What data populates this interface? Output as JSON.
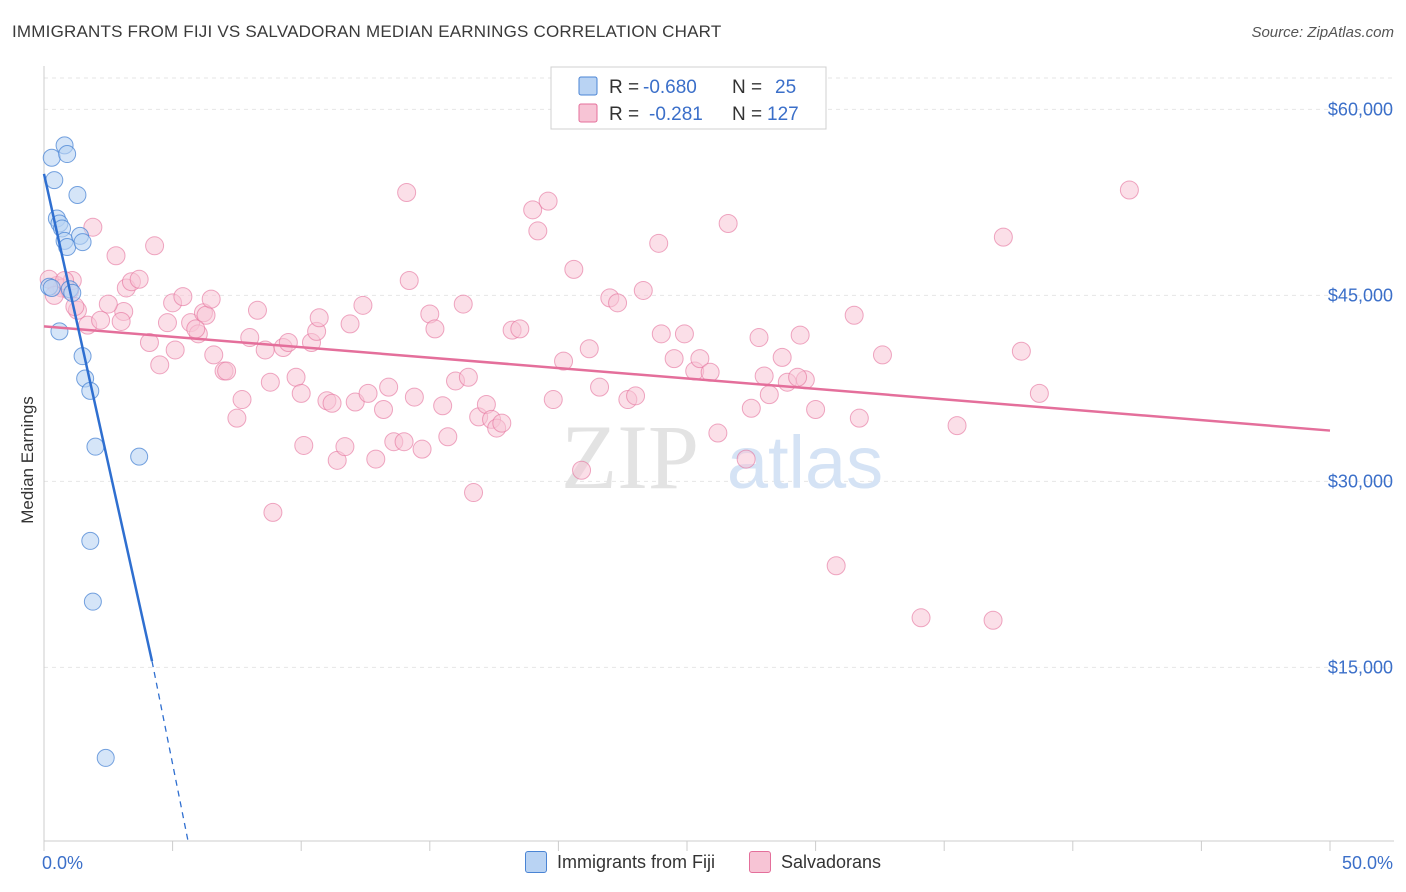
{
  "header": {
    "title": "IMMIGRANTS FROM FIJI VS SALVADORAN MEDIAN EARNINGS CORRELATION CHART",
    "source": "Source: ZipAtlas.com"
  },
  "watermark": {
    "zip": "ZIP",
    "atlas": "atlas"
  },
  "colors": {
    "fiji": "#4a84d4",
    "fiji_fill": "#b9d3f3",
    "salv": "#e46f9b",
    "salv_fill": "#f7c4d5",
    "tick": "#3b6fc9"
  },
  "legend": {
    "rows": [
      {
        "r_label": "R =",
        "r_value": "-0.680",
        "n_label": "N =",
        "n_value": "25"
      },
      {
        "r_label": "R =",
        "r_value": "-0.281",
        "n_label": "N =",
        "n_value": "127"
      }
    ]
  },
  "bottom_legend": {
    "fiji": "Immigrants from Fiji",
    "salv": "Salvadorans"
  },
  "chart_data": {
    "type": "scatter",
    "title": "IMMIGRANTS FROM FIJI VS SALVADORAN MEDIAN EARNINGS CORRELATION CHART",
    "xlabel": "",
    "ylabel": "Median Earnings",
    "xlim": [
      0,
      50
    ],
    "ylim": [
      1000,
      63500
    ],
    "x_tick_labels": [
      "0.0%",
      "50.0%"
    ],
    "y_ticks": [
      15000,
      30000,
      45000,
      60000
    ],
    "y_tick_labels": [
      "$15,000",
      "$30,000",
      "$45,000",
      "$60,000"
    ],
    "grid": true,
    "legend_position": "top-center",
    "series": [
      {
        "name": "Immigrants from Fiji",
        "r": -0.68,
        "n": 25,
        "trend": {
          "x0": 0,
          "y0": 54800,
          "x1": 4.2,
          "y1": 15500,
          "dash_to_x": 5.6,
          "dash_to_y": 1000
        },
        "points": [
          [
            0.3,
            56100
          ],
          [
            0.4,
            54300
          ],
          [
            0.5,
            51200
          ],
          [
            0.6,
            50800
          ],
          [
            0.7,
            50400
          ],
          [
            0.8,
            49400
          ],
          [
            0.9,
            48900
          ],
          [
            1.0,
            45500
          ],
          [
            1.1,
            45200
          ],
          [
            0.2,
            45700
          ],
          [
            0.3,
            45600
          ],
          [
            0.8,
            57100
          ],
          [
            0.9,
            56400
          ],
          [
            1.3,
            53100
          ],
          [
            1.4,
            49800
          ],
          [
            1.5,
            49300
          ],
          [
            0.6,
            42100
          ],
          [
            1.5,
            40100
          ],
          [
            1.6,
            38300
          ],
          [
            1.8,
            37300
          ],
          [
            2.0,
            32800
          ],
          [
            3.7,
            32000
          ],
          [
            1.8,
            25200
          ],
          [
            1.9,
            20300
          ],
          [
            2.4,
            7700
          ]
        ]
      },
      {
        "name": "Salvadorans",
        "r": -0.281,
        "n": 127,
        "trend": {
          "x0": 0,
          "y0": 42500,
          "x1": 50,
          "y1": 34100
        },
        "points": [
          [
            0.5,
            45800
          ],
          [
            0.7,
            45600
          ],
          [
            1.0,
            45400
          ],
          [
            1.1,
            46200
          ],
          [
            1.3,
            43800
          ],
          [
            1.7,
            42600
          ],
          [
            1.9,
            50500
          ],
          [
            2.2,
            43000
          ],
          [
            2.8,
            48200
          ],
          [
            3.1,
            43700
          ],
          [
            3.2,
            45600
          ],
          [
            3.4,
            46100
          ],
          [
            3.7,
            46300
          ],
          [
            4.1,
            41200
          ],
          [
            4.3,
            49000
          ],
          [
            4.5,
            39400
          ],
          [
            4.8,
            42800
          ],
          [
            5.0,
            44400
          ],
          [
            5.1,
            40600
          ],
          [
            5.4,
            44900
          ],
          [
            5.7,
            42800
          ],
          [
            6.0,
            41900
          ],
          [
            6.2,
            43600
          ],
          [
            6.3,
            43400
          ],
          [
            6.5,
            44700
          ],
          [
            6.6,
            40200
          ],
          [
            7.0,
            38900
          ],
          [
            7.1,
            38900
          ],
          [
            7.5,
            35100
          ],
          [
            7.7,
            36600
          ],
          [
            8.0,
            41600
          ],
          [
            8.3,
            43800
          ],
          [
            8.6,
            40600
          ],
          [
            8.8,
            38000
          ],
          [
            8.9,
            27500
          ],
          [
            9.3,
            40800
          ],
          [
            9.5,
            41200
          ],
          [
            9.8,
            38400
          ],
          [
            10.0,
            37100
          ],
          [
            10.1,
            32900
          ],
          [
            10.4,
            41200
          ],
          [
            10.6,
            42100
          ],
          [
            10.7,
            43200
          ],
          [
            11.0,
            36500
          ],
          [
            11.2,
            36300
          ],
          [
            11.4,
            31700
          ],
          [
            11.7,
            32800
          ],
          [
            11.9,
            42700
          ],
          [
            12.1,
            36400
          ],
          [
            12.4,
            44200
          ],
          [
            12.6,
            37100
          ],
          [
            12.9,
            31800
          ],
          [
            13.2,
            35800
          ],
          [
            13.4,
            37600
          ],
          [
            13.6,
            33200
          ],
          [
            14.0,
            33200
          ],
          [
            14.2,
            46200
          ],
          [
            14.4,
            36800
          ],
          [
            14.7,
            32600
          ],
          [
            15.0,
            43500
          ],
          [
            15.2,
            42300
          ],
          [
            15.5,
            36100
          ],
          [
            15.7,
            33600
          ],
          [
            16.0,
            38100
          ],
          [
            16.3,
            44300
          ],
          [
            16.5,
            38400
          ],
          [
            16.7,
            29100
          ],
          [
            16.9,
            35200
          ],
          [
            17.2,
            36200
          ],
          [
            17.4,
            35000
          ],
          [
            17.6,
            34300
          ],
          [
            17.8,
            34700
          ],
          [
            14.1,
            53300
          ],
          [
            18.2,
            42200
          ],
          [
            18.5,
            42300
          ],
          [
            19.0,
            51900
          ],
          [
            19.2,
            50200
          ],
          [
            19.6,
            52600
          ],
          [
            19.8,
            36600
          ],
          [
            20.2,
            39700
          ],
          [
            20.6,
            47100
          ],
          [
            20.9,
            30900
          ],
          [
            21.2,
            40700
          ],
          [
            21.6,
            37600
          ],
          [
            22.0,
            44800
          ],
          [
            22.3,
            44400
          ],
          [
            22.7,
            36600
          ],
          [
            23.0,
            36900
          ],
          [
            23.3,
            45400
          ],
          [
            23.9,
            49200
          ],
          [
            24.0,
            41900
          ],
          [
            24.5,
            39900
          ],
          [
            24.9,
            41900
          ],
          [
            25.3,
            38900
          ],
          [
            25.5,
            39900
          ],
          [
            25.9,
            38800
          ],
          [
            26.2,
            33900
          ],
          [
            26.6,
            50800
          ],
          [
            27.3,
            31800
          ],
          [
            27.5,
            35900
          ],
          [
            27.8,
            41600
          ],
          [
            28.0,
            38500
          ],
          [
            28.2,
            37000
          ],
          [
            28.7,
            40000
          ],
          [
            28.9,
            38000
          ],
          [
            29.4,
            41800
          ],
          [
            29.6,
            38200
          ],
          [
            29.3,
            38400
          ],
          [
            30.0,
            35800
          ],
          [
            30.8,
            23200
          ],
          [
            31.5,
            43400
          ],
          [
            31.7,
            35100
          ],
          [
            32.6,
            40200
          ],
          [
            34.1,
            19000
          ],
          [
            35.5,
            34500
          ],
          [
            36.9,
            18800
          ],
          [
            37.3,
            49700
          ],
          [
            38.0,
            40500
          ],
          [
            38.7,
            37100
          ],
          [
            42.2,
            53500
          ],
          [
            0.2,
            46300
          ],
          [
            0.4,
            45000
          ],
          [
            0.8,
            46200
          ],
          [
            2.5,
            44300
          ],
          [
            3.0,
            42900
          ],
          [
            1.2,
            44100
          ],
          [
            5.9,
            42300
          ]
        ]
      }
    ]
  }
}
